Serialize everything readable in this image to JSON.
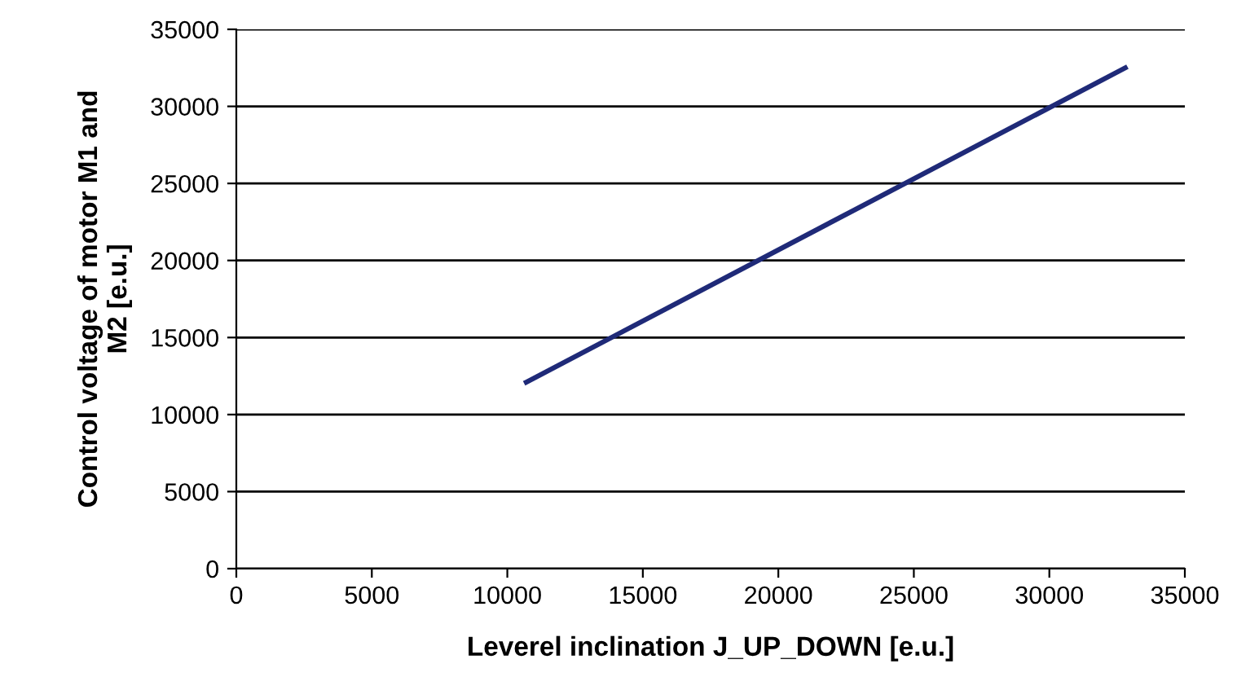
{
  "chart_data": {
    "type": "line",
    "xlabel": "Leverel inclination J_UP_DOWN [e.u.]",
    "ylabel": "Control voltage of motor M1 and\nM2 [e.u.]",
    "series": [
      {
        "color": "#1f2a78",
        "x": [
          10700,
          32800
        ],
        "values": [
          12100,
          32500
        ]
      }
    ],
    "xlim": [
      0,
      35000
    ],
    "xticks": [
      0,
      5000,
      10000,
      15000,
      20000,
      25000,
      30000,
      35000
    ],
    "ylim": [
      0,
      35000
    ],
    "yticks": [
      0,
      5000,
      10000,
      15000,
      20000,
      25000,
      30000,
      35000
    ],
    "grid": "y",
    "legend": false,
    "marker": "none",
    "line_style": "solid"
  }
}
